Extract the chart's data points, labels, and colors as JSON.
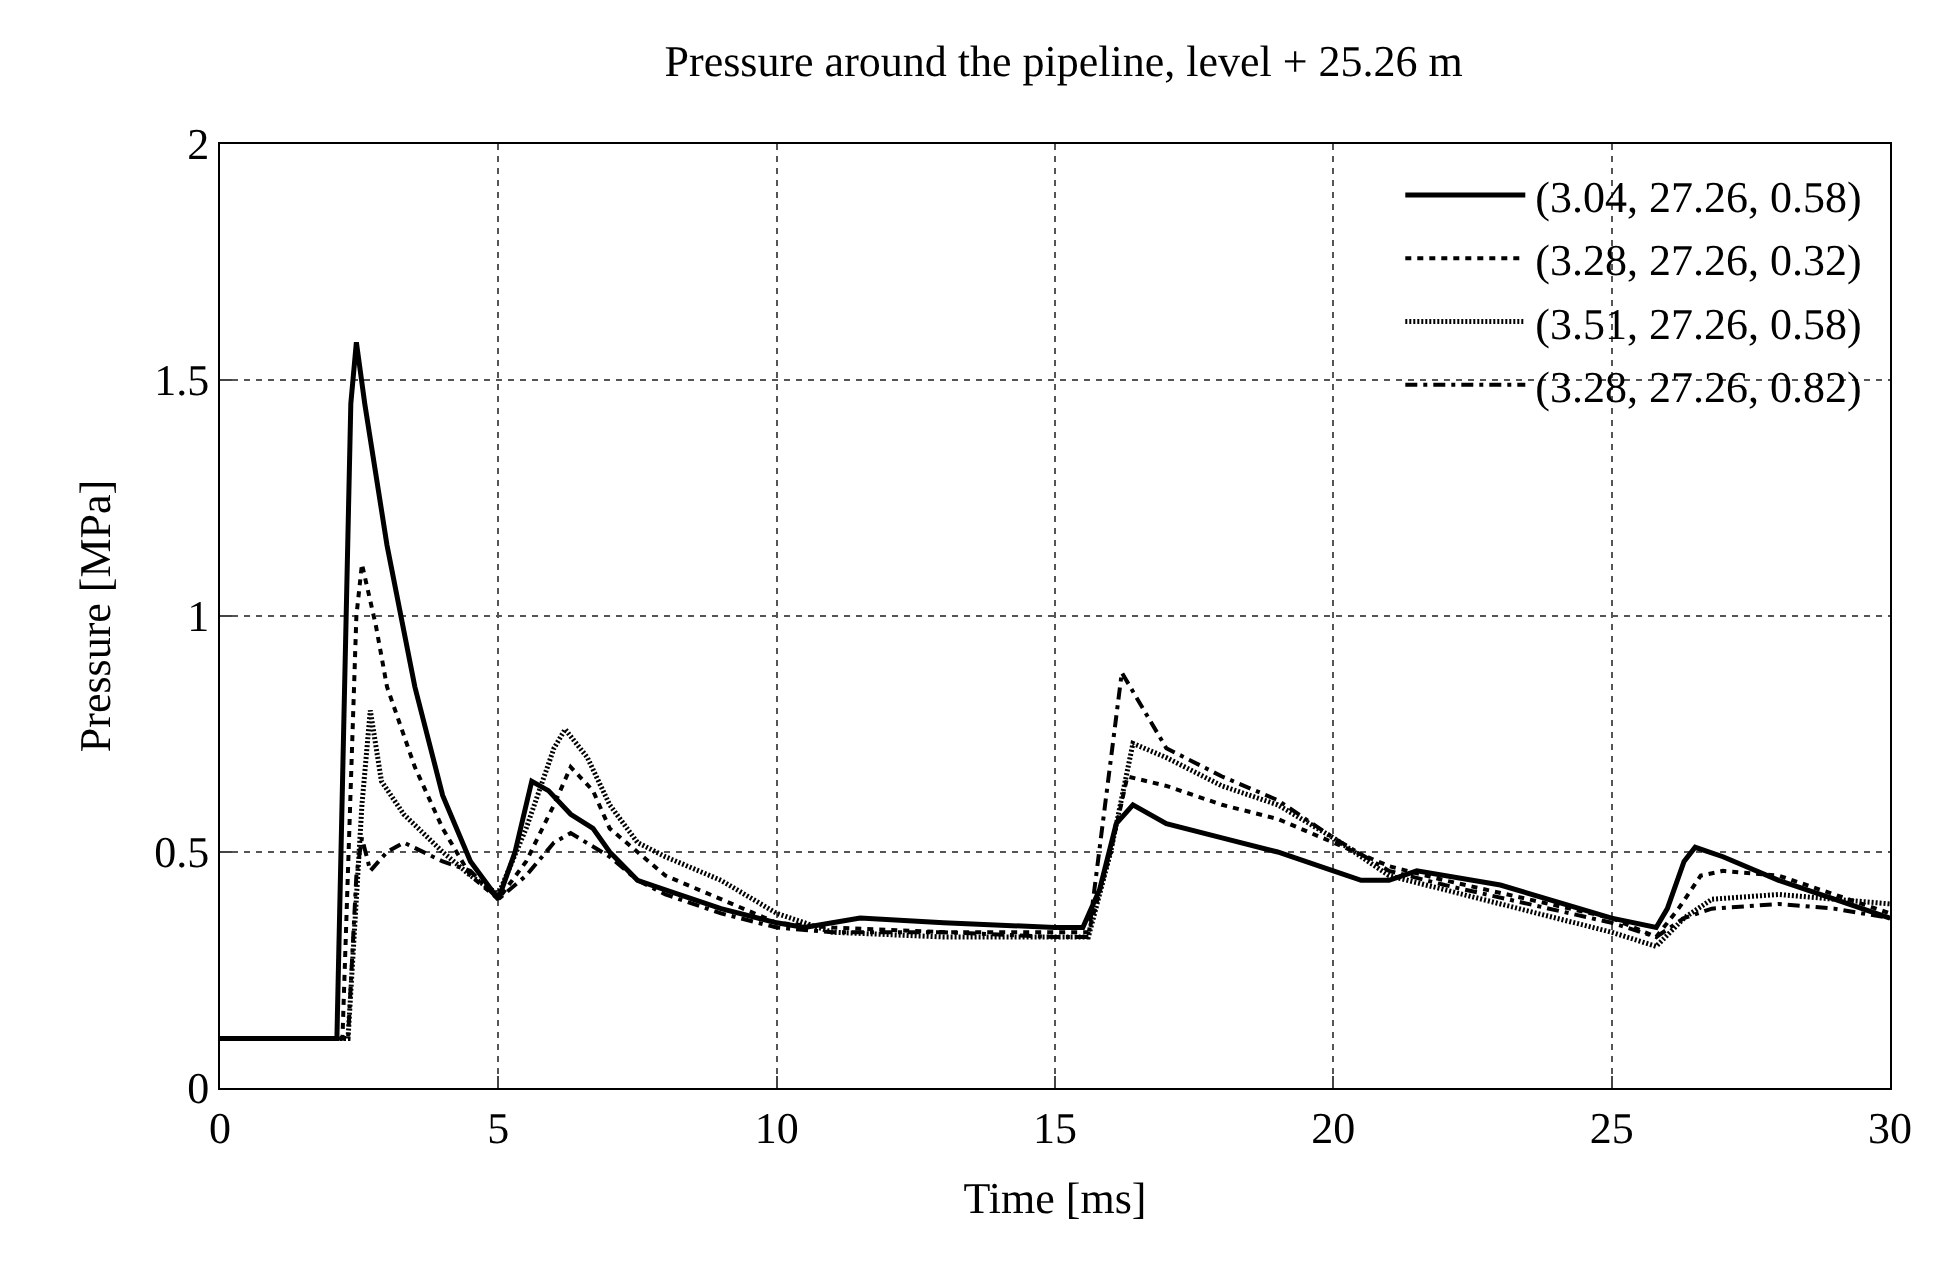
{
  "chart_data": {
    "type": "line",
    "title": "Pressure around the pipeline, level + 25.26 m",
    "xlabel": "Time [ms]",
    "ylabel": "Pressure [MPa]",
    "xlim": [
      0,
      30
    ],
    "xticks": [
      0,
      5,
      10,
      15,
      20,
      25,
      30
    ],
    "ylim": [
      0,
      2
    ],
    "yticks": [
      0,
      0.5,
      1,
      1.5,
      2
    ],
    "grid": true,
    "legend": "top right",
    "marker": "none",
    "series": [
      {
        "name": "(3.04, 27.26, 0.58)",
        "color": "#000000",
        "line_style": "solid",
        "x": [
          0,
          2.1,
          2.35,
          2.45,
          2.6,
          3,
          3.5,
          4,
          4.5,
          5,
          5.3,
          5.6,
          5.9,
          6.3,
          6.7,
          7,
          7.5,
          8,
          9,
          10,
          10.5,
          11,
          11.5,
          13,
          15,
          15.5,
          15.8,
          16.1,
          16.4,
          17,
          18,
          19,
          20,
          20.5,
          21,
          21.5,
          23,
          25,
          25.8,
          26,
          26.3,
          26.5,
          27,
          28,
          29,
          30
        ],
        "values": [
          0.105,
          0.105,
          1.45,
          1.58,
          1.45,
          1.15,
          0.85,
          0.62,
          0.48,
          0.4,
          0.5,
          0.65,
          0.63,
          0.58,
          0.55,
          0.5,
          0.44,
          0.42,
          0.38,
          0.35,
          0.34,
          0.35,
          0.36,
          0.35,
          0.34,
          0.34,
          0.42,
          0.56,
          0.6,
          0.56,
          0.53,
          0.5,
          0.46,
          0.44,
          0.44,
          0.46,
          0.43,
          0.36,
          0.34,
          0.38,
          0.48,
          0.51,
          0.49,
          0.44,
          0.4,
          0.36
        ]
      },
      {
        "name": "(3.28, 27.26, 0.32)",
        "color": "#000000",
        "line_style": "dashed",
        "x": [
          0,
          2.2,
          2.45,
          2.55,
          2.8,
          3,
          3.5,
          4,
          4.5,
          5,
          5.5,
          6,
          6.3,
          6.7,
          7,
          7.5,
          8,
          9,
          10,
          11,
          13,
          15,
          15.6,
          16,
          16.3,
          17,
          18,
          19,
          20,
          21,
          22,
          25,
          25.8,
          26.2,
          26.6,
          27,
          28,
          29,
          30
        ],
        "values": [
          0.105,
          0.105,
          1.0,
          1.11,
          0.98,
          0.85,
          0.68,
          0.55,
          0.45,
          0.4,
          0.48,
          0.6,
          0.68,
          0.63,
          0.55,
          0.5,
          0.45,
          0.4,
          0.35,
          0.34,
          0.33,
          0.33,
          0.33,
          0.5,
          0.66,
          0.64,
          0.6,
          0.57,
          0.52,
          0.47,
          0.44,
          0.36,
          0.32,
          0.38,
          0.45,
          0.46,
          0.45,
          0.41,
          0.37
        ]
      },
      {
        "name": "(3.51, 27.26, 0.58)",
        "color": "#000000",
        "line_style": "dotted",
        "x": [
          0,
          2.3,
          2.55,
          2.7,
          2.9,
          3.3,
          4,
          4.5,
          5,
          5.5,
          6,
          6.2,
          6.6,
          7,
          7.5,
          8,
          9,
          10,
          11,
          13,
          15,
          15.6,
          16,
          16.4,
          17,
          18,
          19,
          20,
          21,
          22,
          25,
          25.8,
          26.3,
          26.8,
          28,
          29,
          30
        ],
        "values": [
          0.105,
          0.105,
          0.6,
          0.8,
          0.65,
          0.58,
          0.5,
          0.45,
          0.41,
          0.55,
          0.72,
          0.76,
          0.7,
          0.6,
          0.52,
          0.49,
          0.44,
          0.37,
          0.33,
          0.32,
          0.32,
          0.32,
          0.5,
          0.73,
          0.7,
          0.64,
          0.6,
          0.53,
          0.45,
          0.42,
          0.33,
          0.3,
          0.36,
          0.4,
          0.41,
          0.4,
          0.39
        ]
      },
      {
        "name": "(3.28, 27.26, 0.82)",
        "color": "#000000",
        "line_style": "dashdot",
        "x": [
          0,
          2.3,
          2.45,
          2.55,
          2.7,
          3,
          3.3,
          4,
          4.5,
          5,
          5.5,
          6,
          6.3,
          7,
          7.5,
          8,
          9,
          10,
          11,
          13,
          15,
          15.6,
          15.9,
          16.2,
          16.6,
          17,
          18,
          19,
          20,
          21,
          22,
          25,
          25.8,
          26.3,
          26.8,
          28,
          29,
          30
        ],
        "values": [
          0.105,
          0.105,
          0.45,
          0.53,
          0.46,
          0.5,
          0.52,
          0.48,
          0.46,
          0.4,
          0.45,
          0.52,
          0.54,
          0.49,
          0.44,
          0.41,
          0.37,
          0.34,
          0.33,
          0.33,
          0.32,
          0.32,
          0.6,
          0.88,
          0.8,
          0.72,
          0.66,
          0.61,
          0.53,
          0.46,
          0.43,
          0.35,
          0.32,
          0.36,
          0.38,
          0.39,
          0.38,
          0.36
        ]
      }
    ]
  }
}
